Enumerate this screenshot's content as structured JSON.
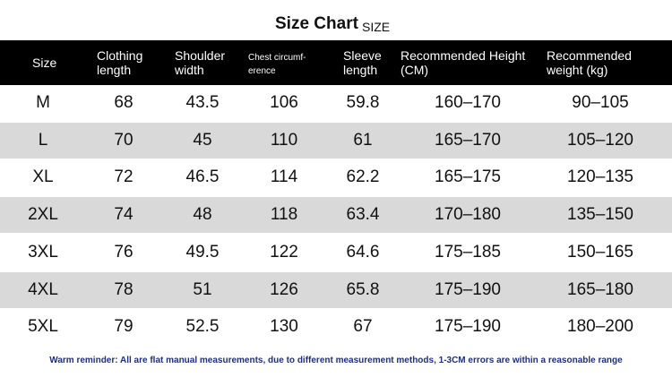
{
  "header": {
    "title": "Size Chart",
    "subtitle": "SIZE"
  },
  "table": {
    "columns": [
      "Size",
      "Clothing\nlength",
      "Shoulder\nwidth",
      "Chest circumf-\nerence",
      "Sleeve\nlength",
      "Recommended Height\n(CM)",
      "Recommended\nweight (kg)"
    ],
    "rows": [
      [
        "M",
        68,
        43.5,
        106,
        59.8,
        "160–170",
        "90–105"
      ],
      [
        "L",
        70,
        45,
        110,
        61,
        "165–170",
        "105–120"
      ],
      [
        "XL",
        72,
        46.5,
        114,
        62.2,
        "165–175",
        "120–135"
      ],
      [
        "2XL",
        74,
        48,
        118,
        63.4,
        "170–180",
        "135–150"
      ],
      [
        "3XL",
        76,
        49.5,
        122,
        64.6,
        "175–185",
        "150–165"
      ],
      [
        "4XL",
        78,
        51,
        126,
        65.8,
        "175–190",
        "165–180"
      ],
      [
        "5XL",
        79,
        52.5,
        130,
        67,
        "175–190",
        "180–200"
      ]
    ]
  },
  "footer": {
    "note": "Warm reminder: All are flat manual measurements, due to different measurement methods, 1-3CM errors are within a reasonable range"
  }
}
